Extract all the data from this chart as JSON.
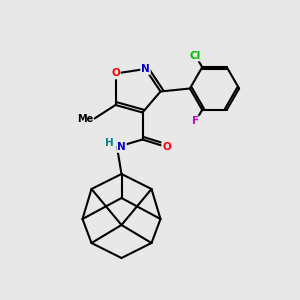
{
  "background_color": "#e8e8e8",
  "bond_color": "#000000",
  "atom_colors": {
    "O": "#ff0000",
    "N": "#0000cc",
    "Cl": "#00bb00",
    "F": "#cc00cc",
    "H": "#008888",
    "C": "#000000"
  },
  "figsize": [
    3.0,
    3.0
  ],
  "dpi": 100,
  "lw": 1.5
}
